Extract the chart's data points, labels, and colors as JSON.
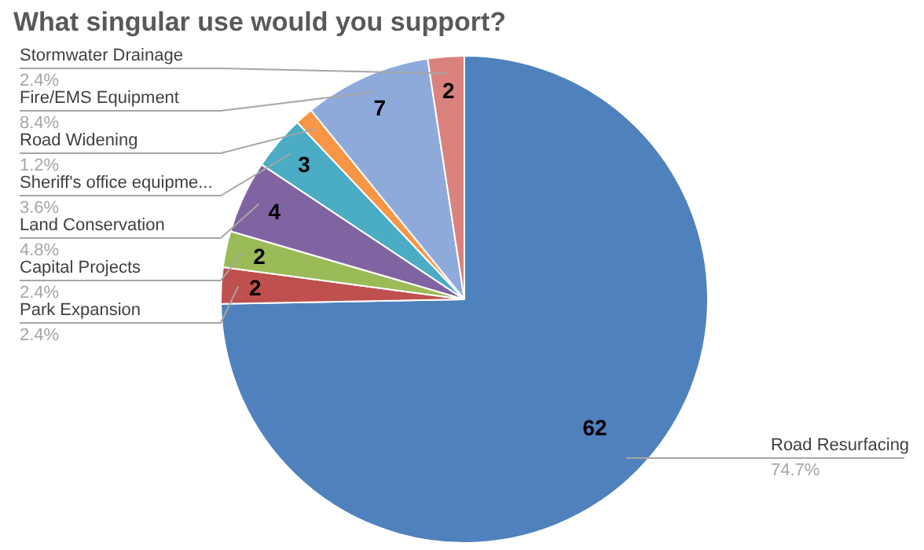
{
  "chart_data": {
    "type": "pie",
    "title": "What singular use would you support?",
    "categories": [
      "Road Resurfacing",
      "Park Expansion",
      "Capital Projects",
      "Land Conservation",
      "Sheriff's office equipme...",
      "Road Widening",
      "Fire/EMS Equipment",
      "Stormwater Drainage"
    ],
    "values": [
      62,
      2,
      2,
      4,
      3,
      1,
      7,
      2
    ],
    "colors": [
      "#4f81bd",
      "#c0504d",
      "#9bbb59",
      "#8064a2",
      "#4bacc6",
      "#f79646",
      "#8eaadb",
      "#d9827e"
    ],
    "value_labels": [
      "62",
      "2",
      "2",
      "4",
      "3",
      null,
      "7",
      "2"
    ],
    "annotations": [
      "74.7%",
      "2.4%",
      "2.4%",
      "4.8%",
      "3.6%",
      "1.2%",
      "8.4%",
      "2.4%"
    ]
  }
}
